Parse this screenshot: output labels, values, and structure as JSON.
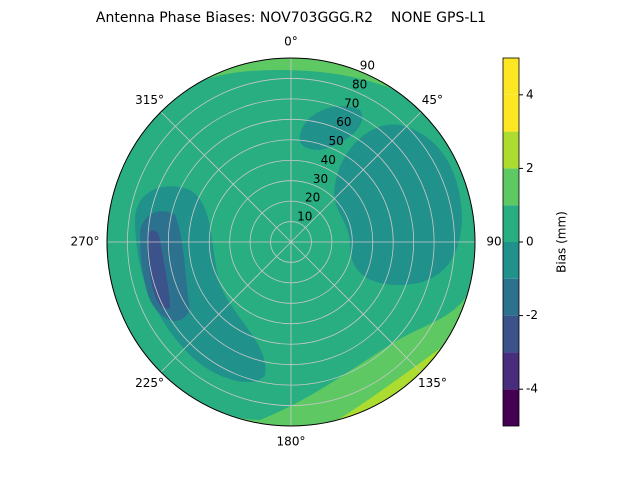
{
  "chart_data": {
    "type": "polar-contour",
    "title": "Antenna Phase Biases: NOV703GGG.R2    NONE GPS-L1",
    "rlim": [
      0,
      90
    ],
    "rticks": [
      10,
      20,
      30,
      40,
      50,
      60,
      70,
      80,
      90
    ],
    "thetaticks": [
      {
        "value": 0,
        "label": "0°"
      },
      {
        "value": 45,
        "label": "45°"
      },
      {
        "value": 90,
        "label": "90°"
      },
      {
        "value": 135,
        "label": "135°"
      },
      {
        "value": 180,
        "label": "180°"
      },
      {
        "value": 225,
        "label": "225°"
      },
      {
        "value": 270,
        "label": "270°"
      },
      {
        "value": 315,
        "label": "315°"
      }
    ],
    "colorbar": {
      "label": "Bias (mm)",
      "lim": [
        -5,
        5
      ],
      "ticks": [
        -4,
        -2,
        0,
        2,
        4
      ],
      "levels": [
        -5,
        -4,
        -3,
        -2,
        -1,
        0,
        1,
        2,
        3,
        4,
        5
      ],
      "colors": [
        "#440154",
        "#472d7b",
        "#3b528b",
        "#2c728e",
        "#21918c",
        "#28ae80",
        "#5ec962",
        "#addc30",
        "#fde725",
        "#fde725"
      ]
    },
    "grid": true
  }
}
